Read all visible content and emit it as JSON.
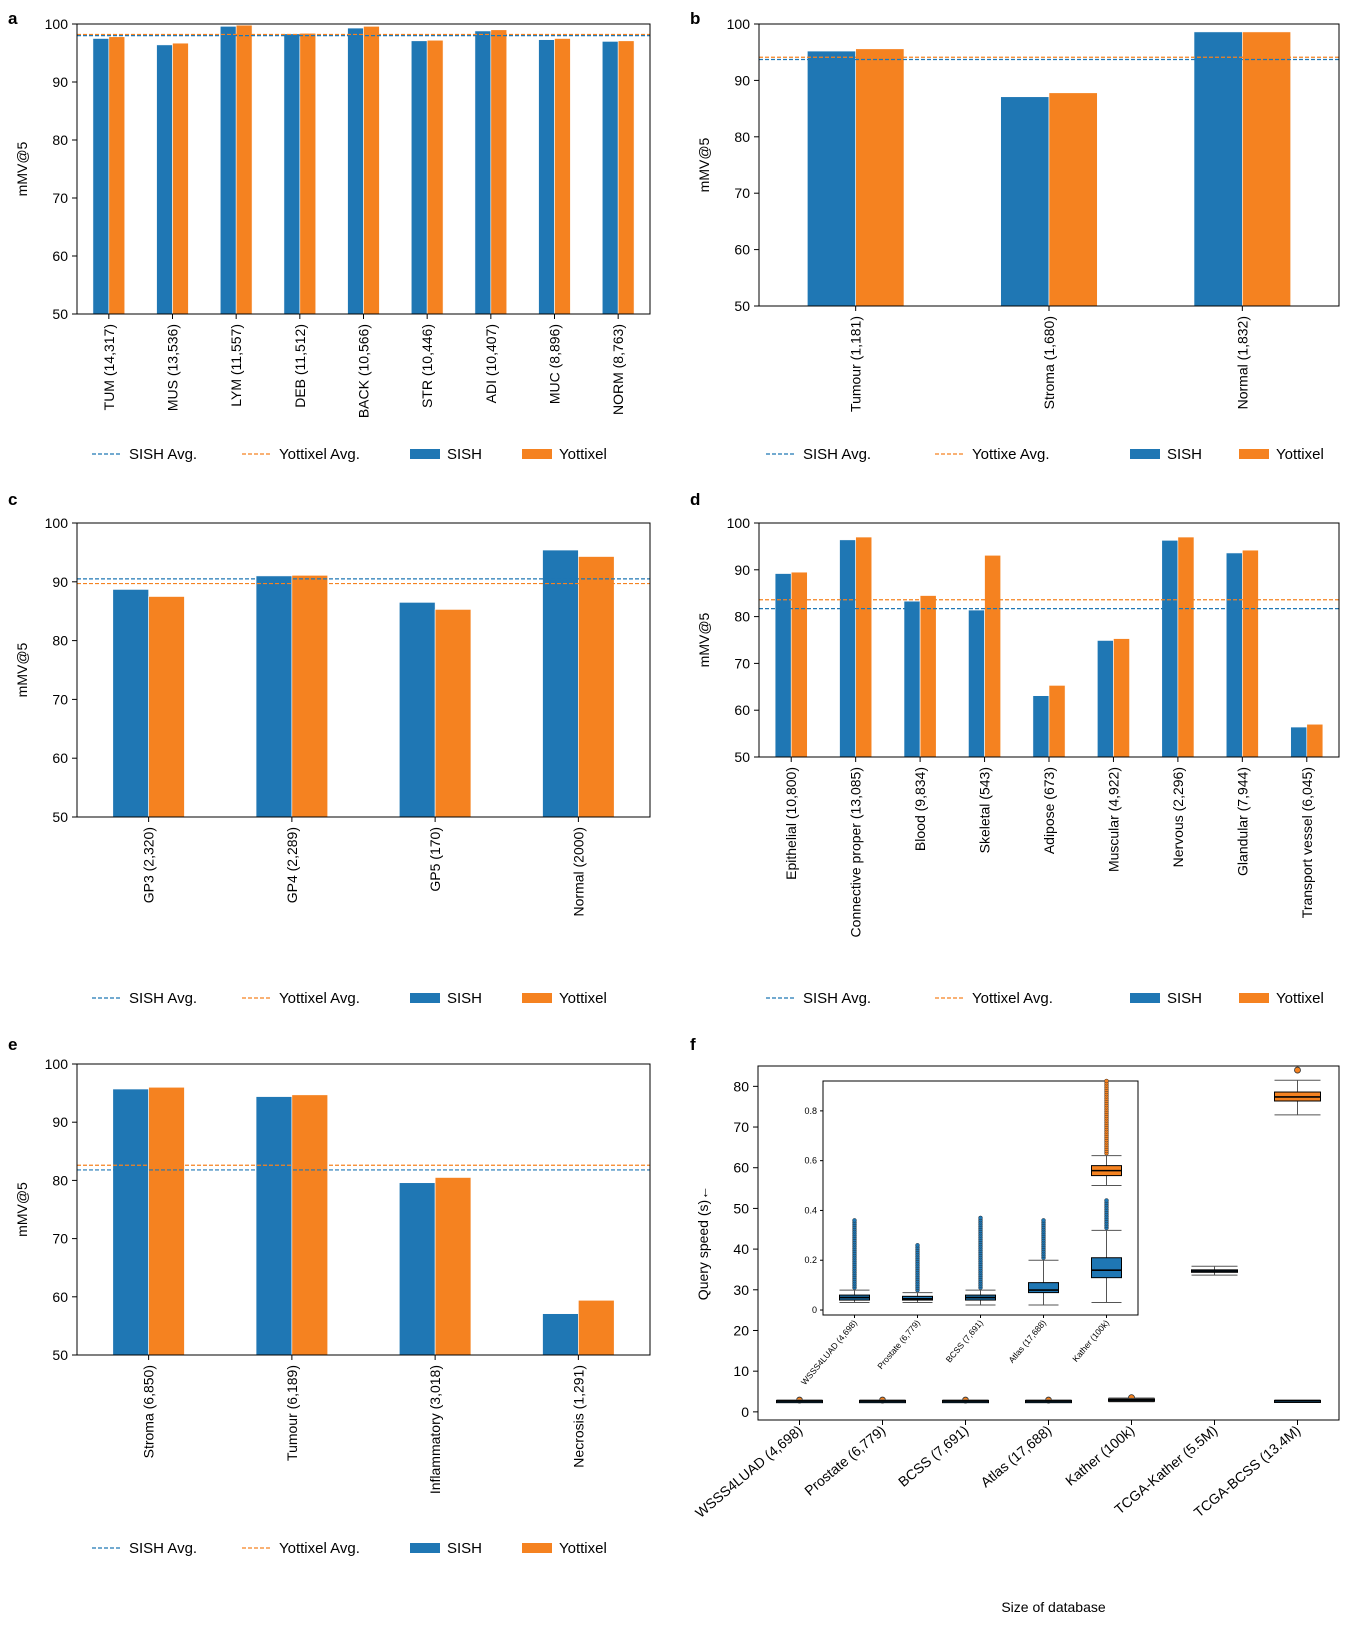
{
  "colors": {
    "sish": "#1f77b4",
    "yottixel": "#f58220"
  },
  "legend": {
    "sish_avg": "SISH Avg.",
    "yottixel_avg": "Yottixel Avg.",
    "sish": "SISH",
    "yottixel": "Yottixel",
    "yottixe_avg": "Yottixe Avg."
  },
  "chart_data": [
    {
      "id": "a",
      "panel_label": "a",
      "type": "bar",
      "ylabel": "mMV@5",
      "ylim": [
        50,
        100
      ],
      "yticks": [
        50,
        60,
        70,
        80,
        90,
        100
      ],
      "categories": [
        "TUM (14,317)",
        "MUS (13,536)",
        "LYM (11,557)",
        "DEB (11,512)",
        "BACK (10,566)",
        "STR (10,446)",
        "ADI (10,407)",
        "MUC (8,896)",
        "NORM (8,763)"
      ],
      "series": [
        {
          "name": "SISH",
          "values": [
            97.5,
            96.4,
            99.6,
            98.3,
            99.3,
            97.1,
            98.8,
            97.3,
            97.0
          ]
        },
        {
          "name": "Yottixel",
          "values": [
            97.8,
            96.7,
            99.8,
            98.4,
            99.6,
            97.2,
            99.0,
            97.5,
            97.1
          ]
        }
      ],
      "avg_lines": {
        "sish": 98.0,
        "yottixel": 98.2
      },
      "legend_keys": [
        "sish_avg",
        "yottixel_avg",
        "sish",
        "yottixel"
      ]
    },
    {
      "id": "b",
      "panel_label": "b",
      "type": "bar",
      "ylabel": "mMV@5",
      "ylim": [
        50,
        100
      ],
      "yticks": [
        50,
        60,
        70,
        80,
        90,
        100
      ],
      "categories": [
        "Tumour (1,181)",
        "Stroma (1,680)",
        "Normal (1,832)"
      ],
      "series": [
        {
          "name": "SISH",
          "values": [
            95.2,
            87.1,
            98.6
          ]
        },
        {
          "name": "Yottixel",
          "values": [
            95.6,
            87.8,
            98.6
          ]
        }
      ],
      "avg_lines": {
        "sish": 93.7,
        "yottixel": 94.1
      },
      "legend_keys": [
        "sish_avg",
        "yottixe_avg",
        "sish",
        "yottixel"
      ]
    },
    {
      "id": "c",
      "panel_label": "c",
      "type": "bar",
      "ylabel": "mMV@5",
      "ylim": [
        50,
        100
      ],
      "yticks": [
        50,
        60,
        70,
        80,
        90,
        100
      ],
      "categories": [
        "GP3 (2,320)",
        "GP4 (2,289)",
        "GP5 (170)",
        "Normal (2000)"
      ],
      "series": [
        {
          "name": "SISH",
          "values": [
            88.7,
            91.0,
            86.5,
            95.4
          ]
        },
        {
          "name": "Yottixel",
          "values": [
            87.5,
            91.1,
            85.3,
            94.3
          ]
        }
      ],
      "avg_lines": {
        "sish": 90.5,
        "yottixel": 89.7
      },
      "legend_keys": [
        "sish_avg",
        "yottixel_avg",
        "sish",
        "yottixel"
      ]
    },
    {
      "id": "d",
      "panel_label": "d",
      "type": "bar",
      "ylabel": "mMV@5",
      "ylim": [
        50,
        100
      ],
      "yticks": [
        50,
        60,
        70,
        80,
        90,
        100
      ],
      "categories": [
        "Epithelial (10,800)",
        "Connective proper (13,085)",
        "Blood (9,834)",
        "Skeletal (543)",
        "Adipose (673)",
        "Muscular (4,922)",
        "Nervous (2,296)",
        "Glandular (7,944)",
        "Transport vessel (6,045)"
      ],
      "series": [
        {
          "name": "SISH",
          "values": [
            89.2,
            96.4,
            83.3,
            81.4,
            63.1,
            74.9,
            96.3,
            93.6,
            56.4
          ]
        },
        {
          "name": "Yottixel",
          "values": [
            89.5,
            97.0,
            84.5,
            93.1,
            65.3,
            75.3,
            97.0,
            94.2,
            57.0
          ]
        }
      ],
      "avg_lines": {
        "sish": 81.7,
        "yottixel": 83.6
      },
      "legend_keys": [
        "sish_avg",
        "yottixel_avg",
        "sish",
        "yottixel"
      ]
    },
    {
      "id": "e",
      "panel_label": "e",
      "type": "bar",
      "ylabel": "mMV@5",
      "ylim": [
        50,
        100
      ],
      "yticks": [
        50,
        60,
        70,
        80,
        90,
        100
      ],
      "categories": [
        "Stroma (6,850)",
        "Tumour (6,189)",
        "Inflammatory (3,018)",
        "Necrosis (1,291)"
      ],
      "series": [
        {
          "name": "SISH",
          "values": [
            95.7,
            94.4,
            79.6,
            57.1
          ]
        },
        {
          "name": "Yottixel",
          "values": [
            96.0,
            94.7,
            80.5,
            59.4
          ]
        }
      ],
      "avg_lines": {
        "sish": 81.8,
        "yottixel": 82.6
      },
      "legend_keys": [
        "sish_avg",
        "yottixel_avg",
        "sish",
        "yottixel"
      ]
    },
    {
      "id": "f",
      "panel_label": "f",
      "type": "box",
      "ylabel": "Query speed (s)←",
      "xlabel": "Size of database",
      "ylim": [
        -2,
        85
      ],
      "yticks": [
        0,
        10,
        20,
        30,
        40,
        50,
        60,
        70,
        80
      ],
      "categories": [
        "WSSS4LUAD (4,698)",
        "Prostate (6,779)",
        "BCSS (7,691)",
        "Atlas (17,688)",
        "Kather (100k)",
        "TCGA-Kather (5.5M)",
        "TCGA-BCSS (13.4M)"
      ],
      "sish_boxes": [
        {
          "min": 2.4,
          "q1": 2.55,
          "median": 2.65,
          "q3": 2.75,
          "max": 2.9
        },
        {
          "min": 2.4,
          "q1": 2.55,
          "median": 2.65,
          "q3": 2.75,
          "max": 2.9
        },
        {
          "min": 2.4,
          "q1": 2.55,
          "median": 2.65,
          "q3": 2.75,
          "max": 2.9
        },
        {
          "min": 2.4,
          "q1": 2.55,
          "median": 2.65,
          "q3": 2.75,
          "max": 2.9
        },
        {
          "min": 2.5,
          "q1": 2.7,
          "median": 2.9,
          "q3": 3.1,
          "max": 3.3
        },
        {
          "min": 33.6,
          "q1": 34.3,
          "median": 34.6,
          "q3": 34.9,
          "max": 35.8
        },
        {
          "min": 2.4,
          "q1": 2.55,
          "median": 2.7,
          "q3": 2.8,
          "max": 2.9
        }
      ],
      "yottixel_boxes": [
        {
          "min": 2.5,
          "q1": 2.6,
          "median": 2.7,
          "q3": 2.8,
          "max": 2.9,
          "outliers": [
            2.9
          ]
        },
        {
          "min": 2.5,
          "q1": 2.6,
          "median": 2.7,
          "q3": 2.8,
          "max": 2.9,
          "outliers": [
            2.9
          ]
        },
        {
          "min": 2.5,
          "q1": 2.6,
          "median": 2.7,
          "q3": 2.8,
          "max": 2.9,
          "outliers": [
            2.9
          ]
        },
        {
          "min": 2.5,
          "q1": 2.6,
          "median": 2.7,
          "q3": 2.8,
          "max": 2.9,
          "outliers": [
            2.9
          ]
        },
        {
          "min": 2.6,
          "q1": 2.8,
          "median": 3.0,
          "q3": 3.2,
          "max": 3.4,
          "outliers": [
            3.5
          ]
        },
        null,
        {
          "min": 73.0,
          "q1": 76.4,
          "median": 77.4,
          "q3": 78.6,
          "max": 81.5,
          "outliers": [
            84.0
          ]
        }
      ],
      "inset": {
        "ylim": [
          -0.02,
          0.92
        ],
        "yticks": [
          0,
          0.2,
          0.4,
          0.6,
          0.8
        ],
        "categories": [
          "WSSS4LUAD (4,698)",
          "Prostate (6,779)",
          "BCSS (7,691)",
          "Atlas (17,688)",
          "Kather (100k)"
        ],
        "sish_boxes": [
          {
            "min": 0.03,
            "q1": 0.04,
            "median": 0.05,
            "q3": 0.06,
            "max": 0.08,
            "outlier_max": 0.36
          },
          {
            "min": 0.03,
            "q1": 0.04,
            "median": 0.045,
            "q3": 0.055,
            "max": 0.07,
            "outlier_max": 0.26
          },
          {
            "min": 0.02,
            "q1": 0.04,
            "median": 0.05,
            "q3": 0.06,
            "max": 0.08,
            "outlier_max": 0.37
          },
          {
            "min": 0.02,
            "q1": 0.07,
            "median": 0.08,
            "q3": 0.11,
            "max": 0.2,
            "outlier_max": 0.36
          },
          {
            "min": 0.03,
            "q1": 0.13,
            "median": 0.16,
            "q3": 0.21,
            "max": 0.32,
            "outlier_max": 0.44
          }
        ],
        "yottixel_boxes": [
          {
            "min": 0.5,
            "q1": 0.54,
            "median": 0.56,
            "q3": 0.58,
            "max": 0.62,
            "outlier_max": 0.92,
            "index": 4
          }
        ]
      }
    }
  ]
}
